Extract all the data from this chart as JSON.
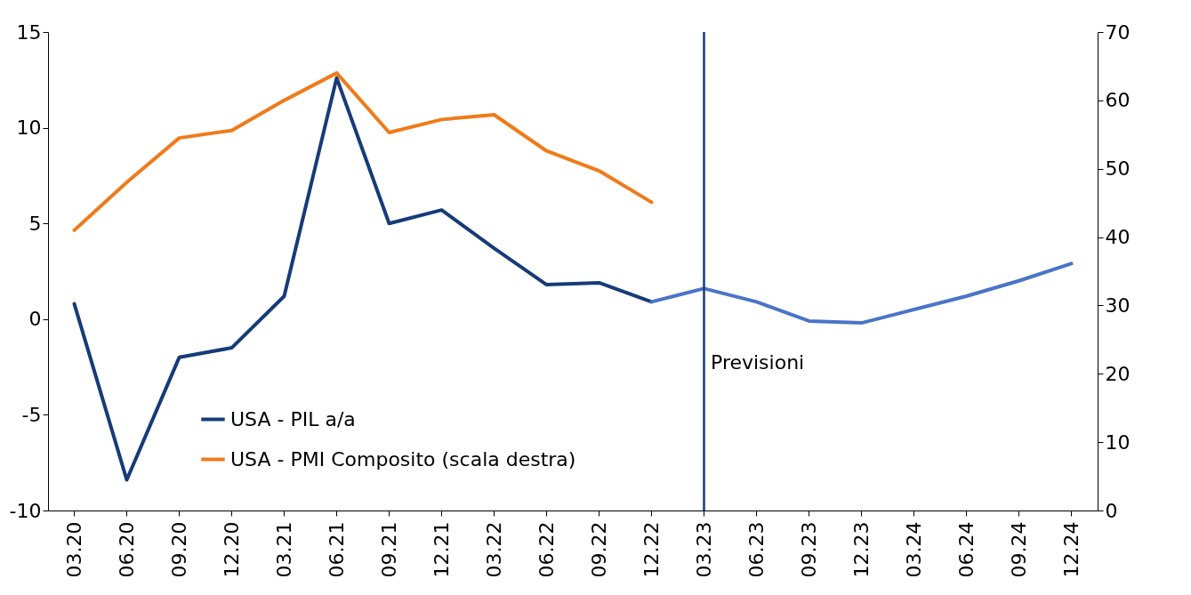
{
  "chart_data": {
    "type": "line",
    "categories": [
      "03.20",
      "06.20",
      "09.20",
      "12.20",
      "03.21",
      "06.21",
      "09.21",
      "12.21",
      "03.22",
      "06.22",
      "09.22",
      "12.22",
      "03.23",
      "06.23",
      "09.23",
      "12.23",
      "03.24",
      "06.24",
      "09.24",
      "12.24"
    ],
    "series": [
      {
        "name": "USA - PIL a/a",
        "color": "#163b78",
        "values": [
          0.8,
          -8.4,
          -2.0,
          -1.5,
          1.2,
          12.6,
          5.0,
          5.7,
          3.7,
          1.8,
          1.9,
          0.9,
          null,
          null,
          null,
          null,
          null,
          null,
          null,
          null
        ]
      },
      {
        "color": "#4a74c8",
        "values": [
          null,
          null,
          null,
          null,
          null,
          null,
          null,
          null,
          null,
          null,
          null,
          0.9,
          1.6,
          0.9,
          -0.1,
          -0.2,
          0.5,
          1.2,
          2.0,
          2.9
        ]
      },
      {
        "name": "USA - PMI Composito (scala destra)",
        "color": "#f07a1a",
        "axis": "y2",
        "values": [
          41.0,
          48.0,
          54.5,
          55.6,
          60.0,
          64.0,
          55.3,
          57.2,
          57.9,
          52.6,
          49.7,
          45.1,
          null,
          null,
          null,
          null,
          null,
          null,
          null,
          null
        ]
      }
    ],
    "ylim": [
      -10,
      15
    ],
    "yticks": [
      -10,
      -5,
      0,
      5,
      10,
      15
    ],
    "y2lim": [
      0,
      70
    ],
    "y2ticks": [
      0,
      10,
      20,
      30,
      40,
      50,
      60,
      70
    ],
    "ref_lines": [
      {
        "axis": "x",
        "value": "03.23",
        "color": "#163b78"
      }
    ],
    "annotations": [
      "Previsioni"
    ],
    "legend": "bottom left",
    "grid": false,
    "marker": "none",
    "line_style": "solid"
  }
}
